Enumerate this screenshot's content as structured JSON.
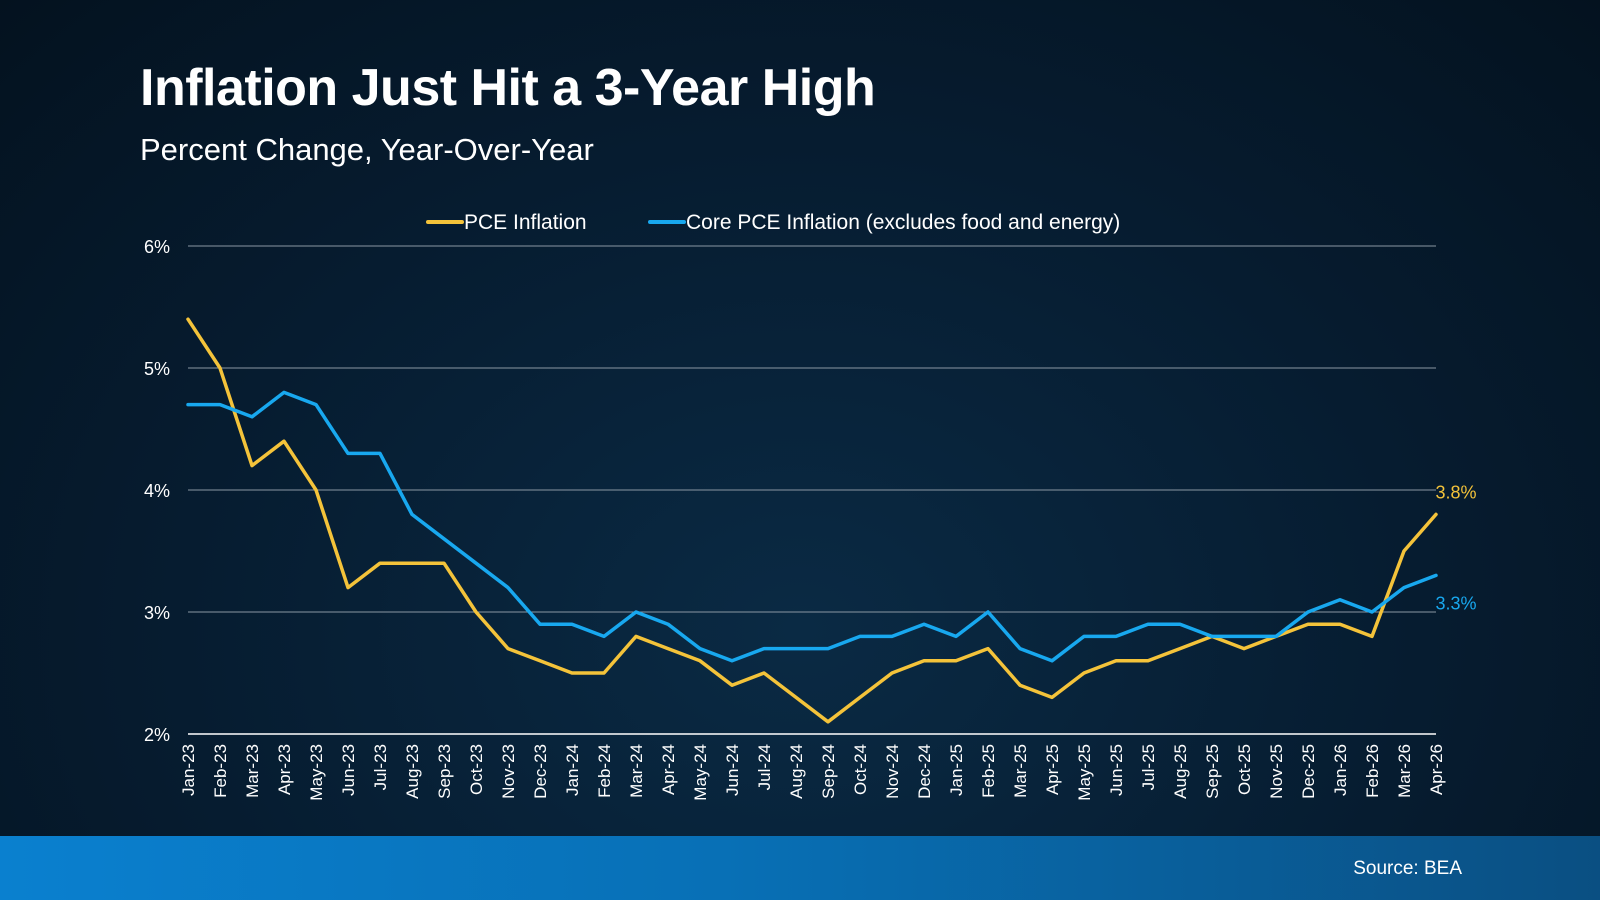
{
  "title": "Inflation Just Hit a 3-Year High",
  "subtitle": "Percent Change, Year-Over-Year",
  "source": "Source: BEA",
  "colors": {
    "pce": "#f4c33a",
    "core": "#18a8ef",
    "grid": "#8a97a3",
    "text": "#ffffff"
  },
  "chart_data": {
    "type": "line",
    "title": "Inflation Just Hit a 3-Year High",
    "subtitle": "Percent Change, Year-Over-Year",
    "xlabel": "",
    "ylabel": "",
    "ylim": [
      2,
      6
    ],
    "yticks": [
      "2%",
      "3%",
      "4%",
      "5%",
      "6%"
    ],
    "ytick_values": [
      2,
      3,
      4,
      5,
      6
    ],
    "grid": true,
    "legend": "top-center",
    "categories": [
      "Jan-23",
      "Feb-23",
      "Mar-23",
      "Apr-23",
      "May-23",
      "Jun-23",
      "Jul-23",
      "Aug-23",
      "Sep-23",
      "Oct-23",
      "Nov-23",
      "Dec-23",
      "Jan-24",
      "Feb-24",
      "Mar-24",
      "Apr-24",
      "May-24",
      "Jun-24",
      "Jul-24",
      "Aug-24",
      "Sep-24",
      "Oct-24",
      "Nov-24",
      "Dec-24",
      "Jan-25",
      "Feb-25",
      "Mar-25",
      "Apr-25",
      "May-25",
      "Jun-25",
      "Jul-25",
      "Aug-25",
      "Sep-25",
      "Oct-25",
      "Nov-25",
      "Dec-25",
      "Jan-26",
      "Feb-26",
      "Mar-26",
      "Apr-26"
    ],
    "series": [
      {
        "name": "PCE Inflation",
        "color": "#f4c33a",
        "values": [
          5.4,
          5.0,
          4.2,
          4.4,
          4.0,
          3.2,
          3.4,
          3.4,
          3.4,
          3.0,
          2.7,
          2.6,
          2.5,
          2.5,
          2.8,
          2.7,
          2.6,
          2.4,
          2.5,
          2.3,
          2.1,
          2.3,
          2.5,
          2.6,
          2.6,
          2.7,
          2.4,
          2.3,
          2.5,
          2.6,
          2.6,
          2.7,
          2.8,
          2.7,
          2.8,
          2.9,
          2.9,
          2.8,
          3.5,
          3.8
        ],
        "end_label": "3.8%"
      },
      {
        "name": "Core PCE Inflation (excludes food and energy)",
        "color": "#18a8ef",
        "values": [
          4.7,
          4.7,
          4.6,
          4.8,
          4.7,
          4.3,
          4.3,
          3.8,
          3.6,
          3.4,
          3.2,
          2.9,
          2.9,
          2.8,
          3.0,
          2.9,
          2.7,
          2.6,
          2.7,
          2.7,
          2.7,
          2.8,
          2.8,
          2.9,
          2.8,
          3.0,
          2.7,
          2.6,
          2.8,
          2.8,
          2.9,
          2.9,
          2.8,
          2.8,
          2.8,
          3.0,
          3.1,
          3.0,
          3.2,
          3.3
        ],
        "end_label": "3.3%"
      }
    ]
  }
}
